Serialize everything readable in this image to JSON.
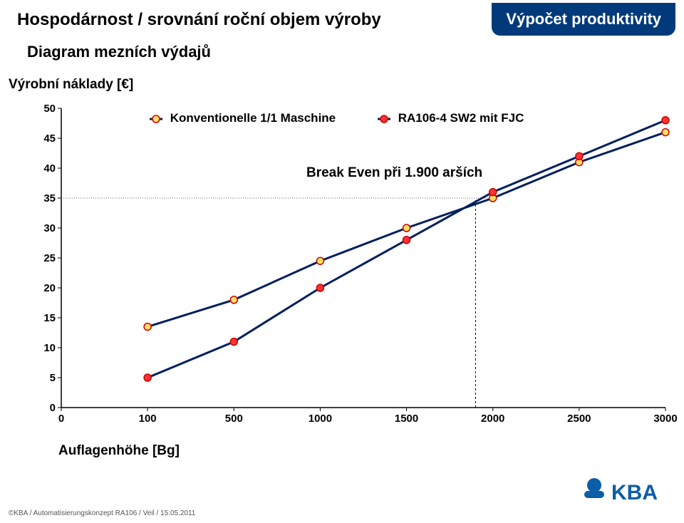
{
  "header": {
    "title": "Hospodárnost / srovnání roční objem výroby",
    "subtitle": "Diagram mezních výdajů",
    "badge": "Výpočet produktivity"
  },
  "axes": {
    "ylabel": "Výrobní náklady [€]",
    "xlabel": "Auflagenhöhe [Bg]",
    "yticks": [
      0,
      5,
      10,
      15,
      20,
      25,
      30,
      35,
      40,
      45,
      50
    ],
    "xticks": [
      0,
      100,
      500,
      1000,
      1500,
      2000,
      2500,
      3000
    ],
    "ylim": [
      0,
      50
    ],
    "xlim": [
      0,
      3000
    ],
    "axis_color": "#000000",
    "tick_fontsize": 17
  },
  "legend": {
    "s1": "Konventionelle 1/1 Maschine",
    "s2": "RA106-4 SW2 mit FJC"
  },
  "annotation": {
    "break_even": "Break Even při 1.900 arších",
    "break_even_x": 1900,
    "vline_color": "#000000",
    "vline_dash": "3,3"
  },
  "chart": {
    "type": "line",
    "background": "#ffffff",
    "line_width": 3,
    "marker_size": 5,
    "marker_stroke": "#cc0000",
    "marker_stroke_width": 1.5,
    "s1": {
      "name": "Konventionelle 1/1 Maschine",
      "color_line": "#001f5f",
      "color_fill": "#ffe066",
      "x": [
        100,
        500,
        1000,
        1500,
        2000,
        2500,
        3000
      ],
      "y": [
        13.5,
        18.0,
        24.5,
        30.0,
        35.0,
        41.0,
        46.0
      ]
    },
    "s2": {
      "name": "RA106-4 SW2 mit FJC",
      "color_line": "#001f5f",
      "color_fill": "#ff3333",
      "x": [
        100,
        500,
        1000,
        1500,
        2000,
        2500,
        3000
      ],
      "y": [
        5.0,
        11.0,
        20.0,
        28.0,
        36.0,
        42.0,
        48.0
      ]
    },
    "hline_y": 35,
    "hline_color": "#666666",
    "hline_dash": "1,2"
  },
  "footer": "©KBA / Automatisierungskonzept RA106 / Veil / 15.05.2011",
  "logo": {
    "text": "KBA",
    "primary": "#0b5ea8",
    "fontsize": 30
  }
}
